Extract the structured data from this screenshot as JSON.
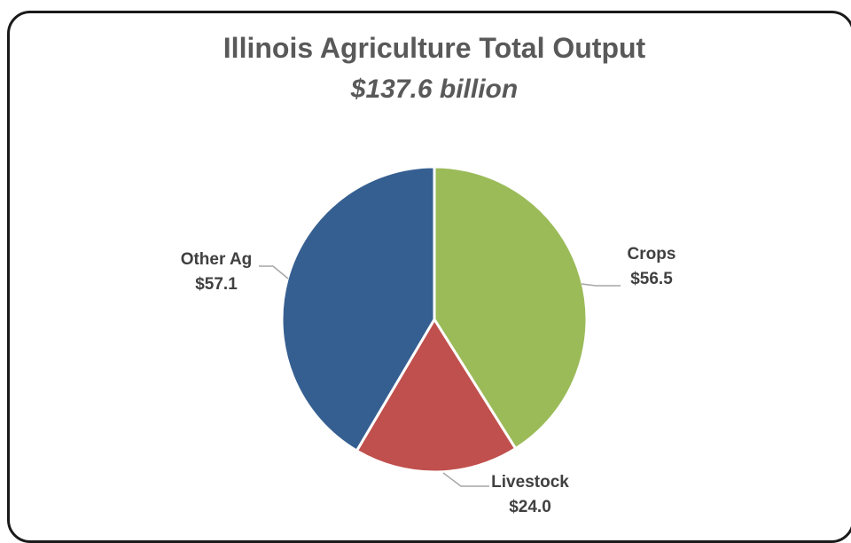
{
  "chart_data": {
    "type": "pie",
    "title": "Illinois Agriculture Total Output",
    "subtitle": "$137.6 billion",
    "categories": [
      "Crops",
      "Livestock",
      "Other Ag"
    ],
    "values": [
      56.5,
      24.0,
      57.1
    ],
    "value_labels": [
      "$56.5",
      "$24.0",
      "$57.1"
    ],
    "colors": [
      "#9BBB59",
      "#C0504D",
      "#365F91"
    ],
    "start_angle_deg": 0,
    "direction": "clockwise",
    "legend": "none"
  }
}
